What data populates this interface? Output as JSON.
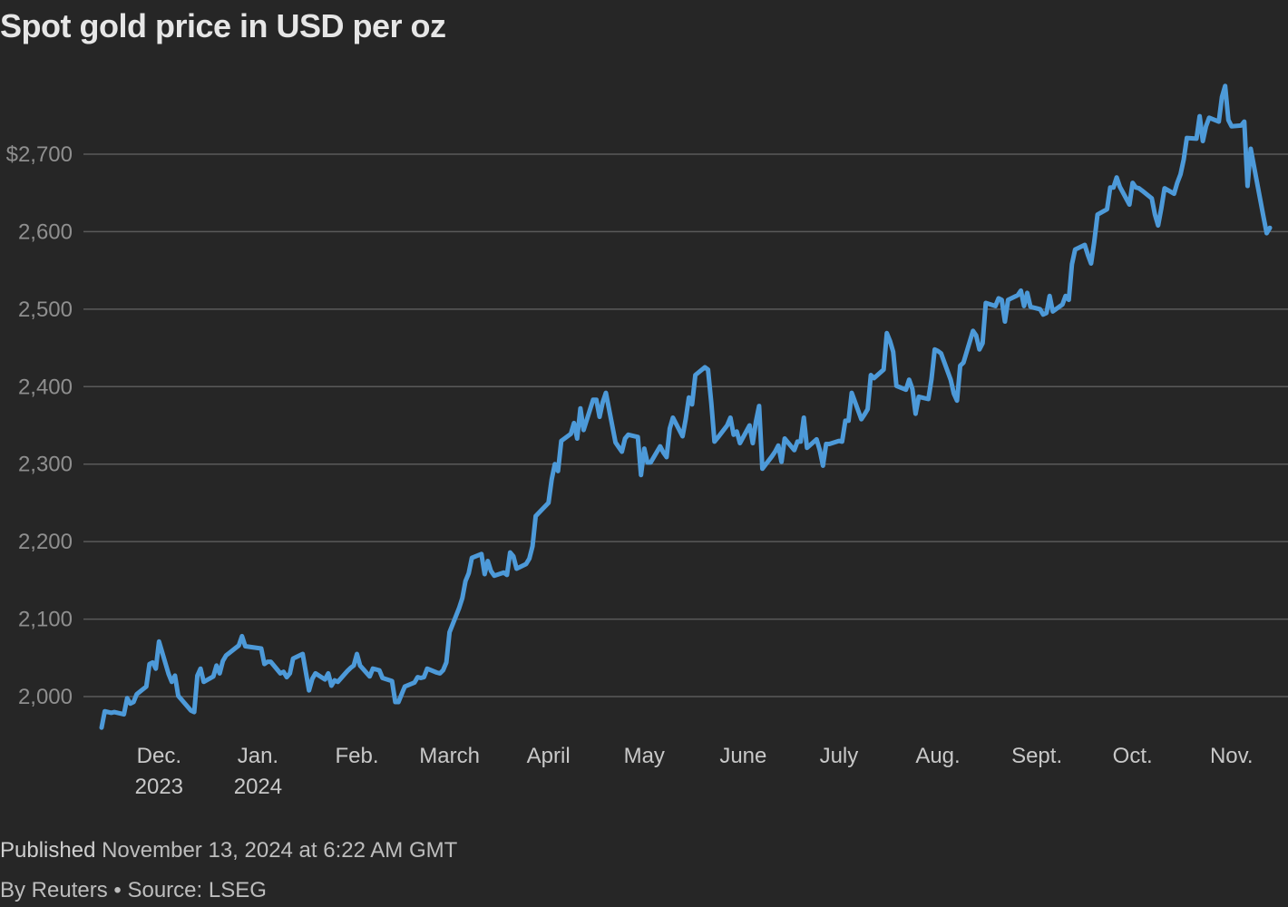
{
  "title": "Spot gold price in USD per oz",
  "footer": {
    "published_label": "Published",
    "published_date": "November 13, 2024 at 6:22 AM GMT",
    "byline": "By Reuters",
    "separator": "•",
    "source": "Source: LSEG"
  },
  "colors": {
    "background": "#262626",
    "line": "#4d9ad9",
    "grid": "#5a5a5a",
    "text": "#c8c8c8",
    "title": "#e6e6e6"
  },
  "chart_data": {
    "type": "line",
    "title": "Spot gold price in USD per oz",
    "xlabel": "",
    "ylabel": "",
    "ylim": [
      1950,
      2800
    ],
    "grid": true,
    "y_ticks": [
      2000,
      2100,
      2200,
      2300,
      2400,
      2500,
      2600,
      2700
    ],
    "y_tick_labels": [
      "2,000",
      "2,100",
      "2,200",
      "2,300",
      "2,400",
      "2,500",
      "2,600",
      "$2,700"
    ],
    "x_ticks": [
      {
        "date": "2023-12-01",
        "label": "Dec.",
        "sublabel": "2023"
      },
      {
        "date": "2024-01-01",
        "label": "Jan.",
        "sublabel": "2024"
      },
      {
        "date": "2024-02-01",
        "label": "Feb.",
        "sublabel": ""
      },
      {
        "date": "2024-03-01",
        "label": "March",
        "sublabel": ""
      },
      {
        "date": "2024-04-01",
        "label": "April",
        "sublabel": ""
      },
      {
        "date": "2024-05-01",
        "label": "May",
        "sublabel": ""
      },
      {
        "date": "2024-06-01",
        "label": "June",
        "sublabel": ""
      },
      {
        "date": "2024-07-01",
        "label": "July",
        "sublabel": ""
      },
      {
        "date": "2024-08-01",
        "label": "Aug.",
        "sublabel": ""
      },
      {
        "date": "2024-09-01",
        "label": "Sept.",
        "sublabel": ""
      },
      {
        "date": "2024-10-01",
        "label": "Oct.",
        "sublabel": ""
      },
      {
        "date": "2024-11-01",
        "label": "Nov.",
        "sublabel": ""
      }
    ],
    "series": [
      {
        "points": [
          [
            "2023-11-13",
            1960
          ],
          [
            "2023-11-14",
            1981
          ],
          [
            "2023-11-16",
            1979
          ],
          [
            "2023-11-17",
            1980
          ],
          [
            "2023-11-20",
            1977
          ],
          [
            "2023-11-21",
            1998
          ],
          [
            "2023-11-22",
            1991
          ],
          [
            "2023-11-23",
            1993
          ],
          [
            "2023-11-24",
            2003
          ],
          [
            "2023-11-27",
            2013
          ],
          [
            "2023-11-28",
            2042
          ],
          [
            "2023-11-29",
            2044
          ],
          [
            "2023-11-30",
            2036
          ],
          [
            "2023-12-01",
            2071
          ],
          [
            "2023-12-04",
            2029
          ],
          [
            "2023-12-05",
            2019
          ],
          [
            "2023-12-06",
            2027
          ],
          [
            "2023-12-07",
            2001
          ],
          [
            "2023-12-11",
            1982
          ],
          [
            "2023-12-12",
            1980
          ],
          [
            "2023-12-13",
            2027
          ],
          [
            "2023-12-14",
            2036
          ],
          [
            "2023-12-15",
            2019
          ],
          [
            "2023-12-18",
            2026
          ],
          [
            "2023-12-19",
            2040
          ],
          [
            "2023-12-20",
            2030
          ],
          [
            "2023-12-21",
            2046
          ],
          [
            "2023-12-22",
            2053
          ],
          [
            "2023-12-26",
            2066
          ],
          [
            "2023-12-27",
            2078
          ],
          [
            "2023-12-28",
            2065
          ],
          [
            "2024-01-02",
            2062
          ],
          [
            "2024-01-03",
            2042
          ],
          [
            "2024-01-04",
            2045
          ],
          [
            "2024-01-05",
            2045
          ],
          [
            "2024-01-08",
            2030
          ],
          [
            "2024-01-09",
            2032
          ],
          [
            "2024-01-10",
            2025
          ],
          [
            "2024-01-11",
            2030
          ],
          [
            "2024-01-12",
            2049
          ],
          [
            "2024-01-15",
            2055
          ],
          [
            "2024-01-17",
            2008
          ],
          [
            "2024-01-18",
            2023
          ],
          [
            "2024-01-19",
            2030
          ],
          [
            "2024-01-22",
            2022
          ],
          [
            "2024-01-23",
            2030
          ],
          [
            "2024-01-24",
            2014
          ],
          [
            "2024-01-25",
            2021
          ],
          [
            "2024-01-26",
            2019
          ],
          [
            "2024-01-29",
            2033
          ],
          [
            "2024-01-30",
            2037
          ],
          [
            "2024-01-31",
            2040
          ],
          [
            "2024-02-01",
            2055
          ],
          [
            "2024-02-02",
            2040
          ],
          [
            "2024-02-05",
            2026
          ],
          [
            "2024-02-06",
            2036
          ],
          [
            "2024-02-07",
            2035
          ],
          [
            "2024-02-08",
            2034
          ],
          [
            "2024-02-09",
            2024
          ],
          [
            "2024-02-12",
            2020
          ],
          [
            "2024-02-13",
            1993
          ],
          [
            "2024-02-14",
            1993
          ],
          [
            "2024-02-15",
            2003
          ],
          [
            "2024-02-16",
            2013
          ],
          [
            "2024-02-19",
            2018
          ],
          [
            "2024-02-20",
            2025
          ],
          [
            "2024-02-21",
            2024
          ],
          [
            "2024-02-22",
            2025
          ],
          [
            "2024-02-23",
            2036
          ],
          [
            "2024-02-26",
            2031
          ],
          [
            "2024-02-27",
            2030
          ],
          [
            "2024-02-28",
            2034
          ],
          [
            "2024-02-29",
            2044
          ],
          [
            "2024-03-01",
            2083
          ],
          [
            "2024-03-04",
            2114
          ],
          [
            "2024-03-05",
            2127
          ],
          [
            "2024-03-06",
            2149
          ],
          [
            "2024-03-07",
            2159
          ],
          [
            "2024-03-08",
            2179
          ],
          [
            "2024-03-11",
            2184
          ],
          [
            "2024-03-12",
            2158
          ],
          [
            "2024-03-13",
            2175
          ],
          [
            "2024-03-14",
            2162
          ],
          [
            "2024-03-15",
            2156
          ],
          [
            "2024-03-18",
            2160
          ],
          [
            "2024-03-19",
            2157
          ],
          [
            "2024-03-20",
            2186
          ],
          [
            "2024-03-21",
            2181
          ],
          [
            "2024-03-22",
            2165
          ],
          [
            "2024-03-25",
            2171
          ],
          [
            "2024-03-26",
            2178
          ],
          [
            "2024-03-27",
            2194
          ],
          [
            "2024-03-28",
            2233
          ],
          [
            "2024-04-01",
            2250
          ],
          [
            "2024-04-02",
            2280
          ],
          [
            "2024-04-03",
            2300
          ],
          [
            "2024-04-04",
            2291
          ],
          [
            "2024-04-05",
            2330
          ],
          [
            "2024-04-08",
            2339
          ],
          [
            "2024-04-09",
            2353
          ],
          [
            "2024-04-10",
            2333
          ],
          [
            "2024-04-11",
            2372
          ],
          [
            "2024-04-12",
            2344
          ],
          [
            "2024-04-15",
            2383
          ],
          [
            "2024-04-16",
            2383
          ],
          [
            "2024-04-17",
            2361
          ],
          [
            "2024-04-18",
            2380
          ],
          [
            "2024-04-19",
            2392
          ],
          [
            "2024-04-22",
            2328
          ],
          [
            "2024-04-23",
            2322
          ],
          [
            "2024-04-24",
            2316
          ],
          [
            "2024-04-25",
            2333
          ],
          [
            "2024-04-26",
            2338
          ],
          [
            "2024-04-29",
            2335
          ],
          [
            "2024-04-30",
            2286
          ],
          [
            "2024-05-01",
            2320
          ],
          [
            "2024-05-02",
            2302
          ],
          [
            "2024-05-03",
            2302
          ],
          [
            "2024-05-06",
            2323
          ],
          [
            "2024-05-07",
            2315
          ],
          [
            "2024-05-08",
            2309
          ],
          [
            "2024-05-09",
            2346
          ],
          [
            "2024-05-10",
            2360
          ],
          [
            "2024-05-13",
            2336
          ],
          [
            "2024-05-14",
            2358
          ],
          [
            "2024-05-15",
            2386
          ],
          [
            "2024-05-16",
            2377
          ],
          [
            "2024-05-17",
            2415
          ],
          [
            "2024-05-20",
            2425
          ],
          [
            "2024-05-21",
            2422
          ],
          [
            "2024-05-22",
            2379
          ],
          [
            "2024-05-23",
            2329
          ],
          [
            "2024-05-24",
            2334
          ],
          [
            "2024-05-27",
            2350
          ],
          [
            "2024-05-28",
            2360
          ],
          [
            "2024-05-29",
            2338
          ],
          [
            "2024-05-30",
            2342
          ],
          [
            "2024-05-31",
            2327
          ],
          [
            "2024-06-03",
            2350
          ],
          [
            "2024-06-04",
            2327
          ],
          [
            "2024-06-05",
            2355
          ],
          [
            "2024-06-06",
            2375
          ],
          [
            "2024-06-07",
            2294
          ],
          [
            "2024-06-10",
            2310
          ],
          [
            "2024-06-11",
            2316
          ],
          [
            "2024-06-12",
            2324
          ],
          [
            "2024-06-13",
            2303
          ],
          [
            "2024-06-14",
            2333
          ],
          [
            "2024-06-17",
            2318
          ],
          [
            "2024-06-18",
            2329
          ],
          [
            "2024-06-19",
            2329
          ],
          [
            "2024-06-20",
            2360
          ],
          [
            "2024-06-21",
            2321
          ],
          [
            "2024-06-24",
            2332
          ],
          [
            "2024-06-25",
            2318
          ],
          [
            "2024-06-26",
            2298
          ],
          [
            "2024-06-27",
            2326
          ],
          [
            "2024-06-28",
            2326
          ],
          [
            "2024-07-01",
            2330
          ],
          [
            "2024-07-02",
            2329
          ],
          [
            "2024-07-03",
            2356
          ],
          [
            "2024-07-04",
            2356
          ],
          [
            "2024-07-05",
            2392
          ],
          [
            "2024-07-08",
            2358
          ],
          [
            "2024-07-09",
            2364
          ],
          [
            "2024-07-10",
            2371
          ],
          [
            "2024-07-11",
            2415
          ],
          [
            "2024-07-12",
            2411
          ],
          [
            "2024-07-15",
            2422
          ],
          [
            "2024-07-16",
            2469
          ],
          [
            "2024-07-17",
            2459
          ],
          [
            "2024-07-18",
            2445
          ],
          [
            "2024-07-19",
            2401
          ],
          [
            "2024-07-22",
            2396
          ],
          [
            "2024-07-23",
            2409
          ],
          [
            "2024-07-24",
            2397
          ],
          [
            "2024-07-25",
            2365
          ],
          [
            "2024-07-26",
            2387
          ],
          [
            "2024-07-29",
            2384
          ],
          [
            "2024-07-30",
            2410
          ],
          [
            "2024-07-31",
            2448
          ],
          [
            "2024-08-01",
            2446
          ],
          [
            "2024-08-02",
            2443
          ],
          [
            "2024-08-05",
            2409
          ],
          [
            "2024-08-06",
            2391
          ],
          [
            "2024-08-07",
            2382
          ],
          [
            "2024-08-08",
            2427
          ],
          [
            "2024-08-09",
            2431
          ],
          [
            "2024-08-12",
            2472
          ],
          [
            "2024-08-13",
            2466
          ],
          [
            "2024-08-14",
            2448
          ],
          [
            "2024-08-15",
            2456
          ],
          [
            "2024-08-16",
            2508
          ],
          [
            "2024-08-19",
            2504
          ],
          [
            "2024-08-20",
            2514
          ],
          [
            "2024-08-21",
            2512
          ],
          [
            "2024-08-22",
            2484
          ],
          [
            "2024-08-23",
            2512
          ],
          [
            "2024-08-26",
            2518
          ],
          [
            "2024-08-27",
            2524
          ],
          [
            "2024-08-28",
            2504
          ],
          [
            "2024-08-29",
            2521
          ],
          [
            "2024-08-30",
            2503
          ],
          [
            "2024-09-02",
            2500
          ],
          [
            "2024-09-03",
            2493
          ],
          [
            "2024-09-04",
            2495
          ],
          [
            "2024-09-05",
            2517
          ],
          [
            "2024-09-06",
            2497
          ],
          [
            "2024-09-09",
            2506
          ],
          [
            "2024-09-10",
            2517
          ],
          [
            "2024-09-11",
            2512
          ],
          [
            "2024-09-12",
            2558
          ],
          [
            "2024-09-13",
            2577
          ],
          [
            "2024-09-16",
            2583
          ],
          [
            "2024-09-17",
            2570
          ],
          [
            "2024-09-18",
            2559
          ],
          [
            "2024-09-19",
            2587
          ],
          [
            "2024-09-20",
            2622
          ],
          [
            "2024-09-23",
            2629
          ],
          [
            "2024-09-24",
            2657
          ],
          [
            "2024-09-25",
            2657
          ],
          [
            "2024-09-26",
            2670
          ],
          [
            "2024-09-27",
            2658
          ],
          [
            "2024-09-30",
            2635
          ],
          [
            "2024-10-01",
            2663
          ],
          [
            "2024-10-02",
            2657
          ],
          [
            "2024-10-03",
            2656
          ],
          [
            "2024-10-04",
            2653
          ],
          [
            "2024-10-07",
            2643
          ],
          [
            "2024-10-08",
            2622
          ],
          [
            "2024-10-09",
            2608
          ],
          [
            "2024-10-10",
            2630
          ],
          [
            "2024-10-11",
            2656
          ],
          [
            "2024-10-14",
            2649
          ],
          [
            "2024-10-15",
            2663
          ],
          [
            "2024-10-16",
            2674
          ],
          [
            "2024-10-17",
            2693
          ],
          [
            "2024-10-18",
            2721
          ],
          [
            "2024-10-21",
            2720
          ],
          [
            "2024-10-22",
            2749
          ],
          [
            "2024-10-23",
            2717
          ],
          [
            "2024-10-24",
            2736
          ],
          [
            "2024-10-25",
            2747
          ],
          [
            "2024-10-28",
            2742
          ],
          [
            "2024-10-29",
            2774
          ],
          [
            "2024-10-30",
            2788
          ],
          [
            "2024-10-31",
            2744
          ],
          [
            "2024-11-01",
            2736
          ],
          [
            "2024-11-04",
            2737
          ],
          [
            "2024-11-05",
            2742
          ],
          [
            "2024-11-06",
            2659
          ],
          [
            "2024-11-07",
            2707
          ],
          [
            "2024-11-08",
            2685
          ],
          [
            "2024-11-11",
            2619
          ],
          [
            "2024-11-12",
            2598
          ],
          [
            "2024-11-13",
            2605
          ]
        ]
      }
    ]
  }
}
